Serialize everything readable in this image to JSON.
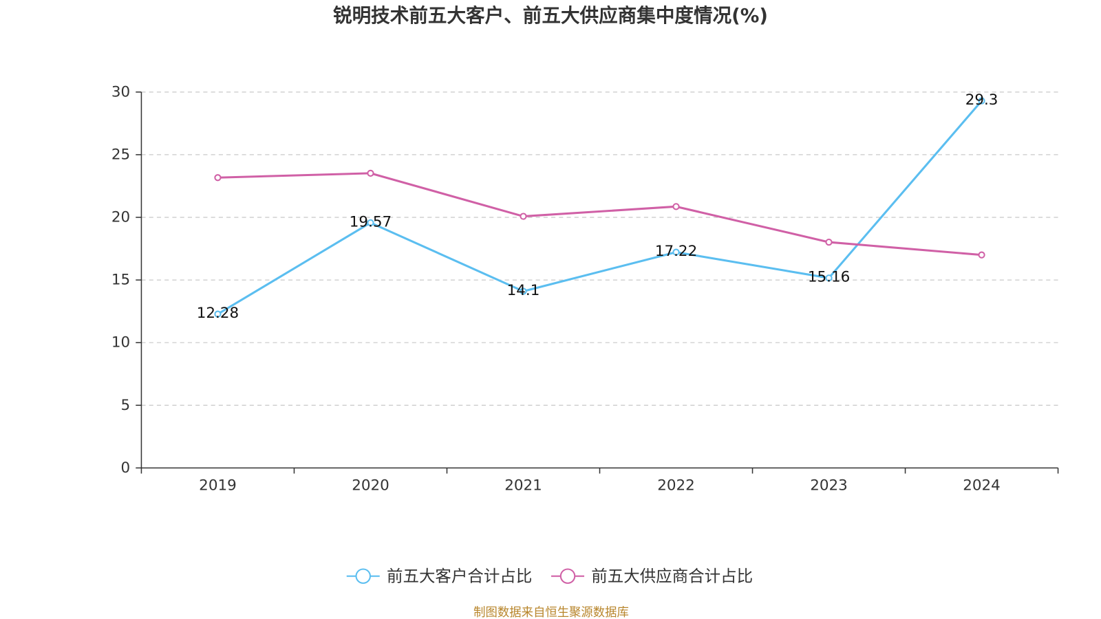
{
  "source": "制图数据来自恒生聚源数据库",
  "chart_data": {
    "type": "line",
    "title": "锐明技术前五大客户、前五大供应商集中度情况(%)",
    "xlabel": "",
    "ylabel": "",
    "categories": [
      "2019",
      "2020",
      "2021",
      "2022",
      "2023",
      "2024"
    ],
    "ylim": [
      0,
      30
    ],
    "yticks": [
      0,
      5,
      10,
      15,
      20,
      25,
      30
    ],
    "grid": true,
    "series": [
      {
        "name": "前五大客户合计占比",
        "color": "#5bbef0",
        "show_labels": true,
        "values": [
          12.28,
          19.57,
          14.1,
          17.22,
          15.16,
          29.3
        ]
      },
      {
        "name": "前五大供应商合计占比",
        "color": "#d060a6",
        "show_labels": false,
        "values": [
          23.17,
          23.52,
          20.08,
          20.86,
          18.02,
          17.0
        ]
      }
    ]
  }
}
